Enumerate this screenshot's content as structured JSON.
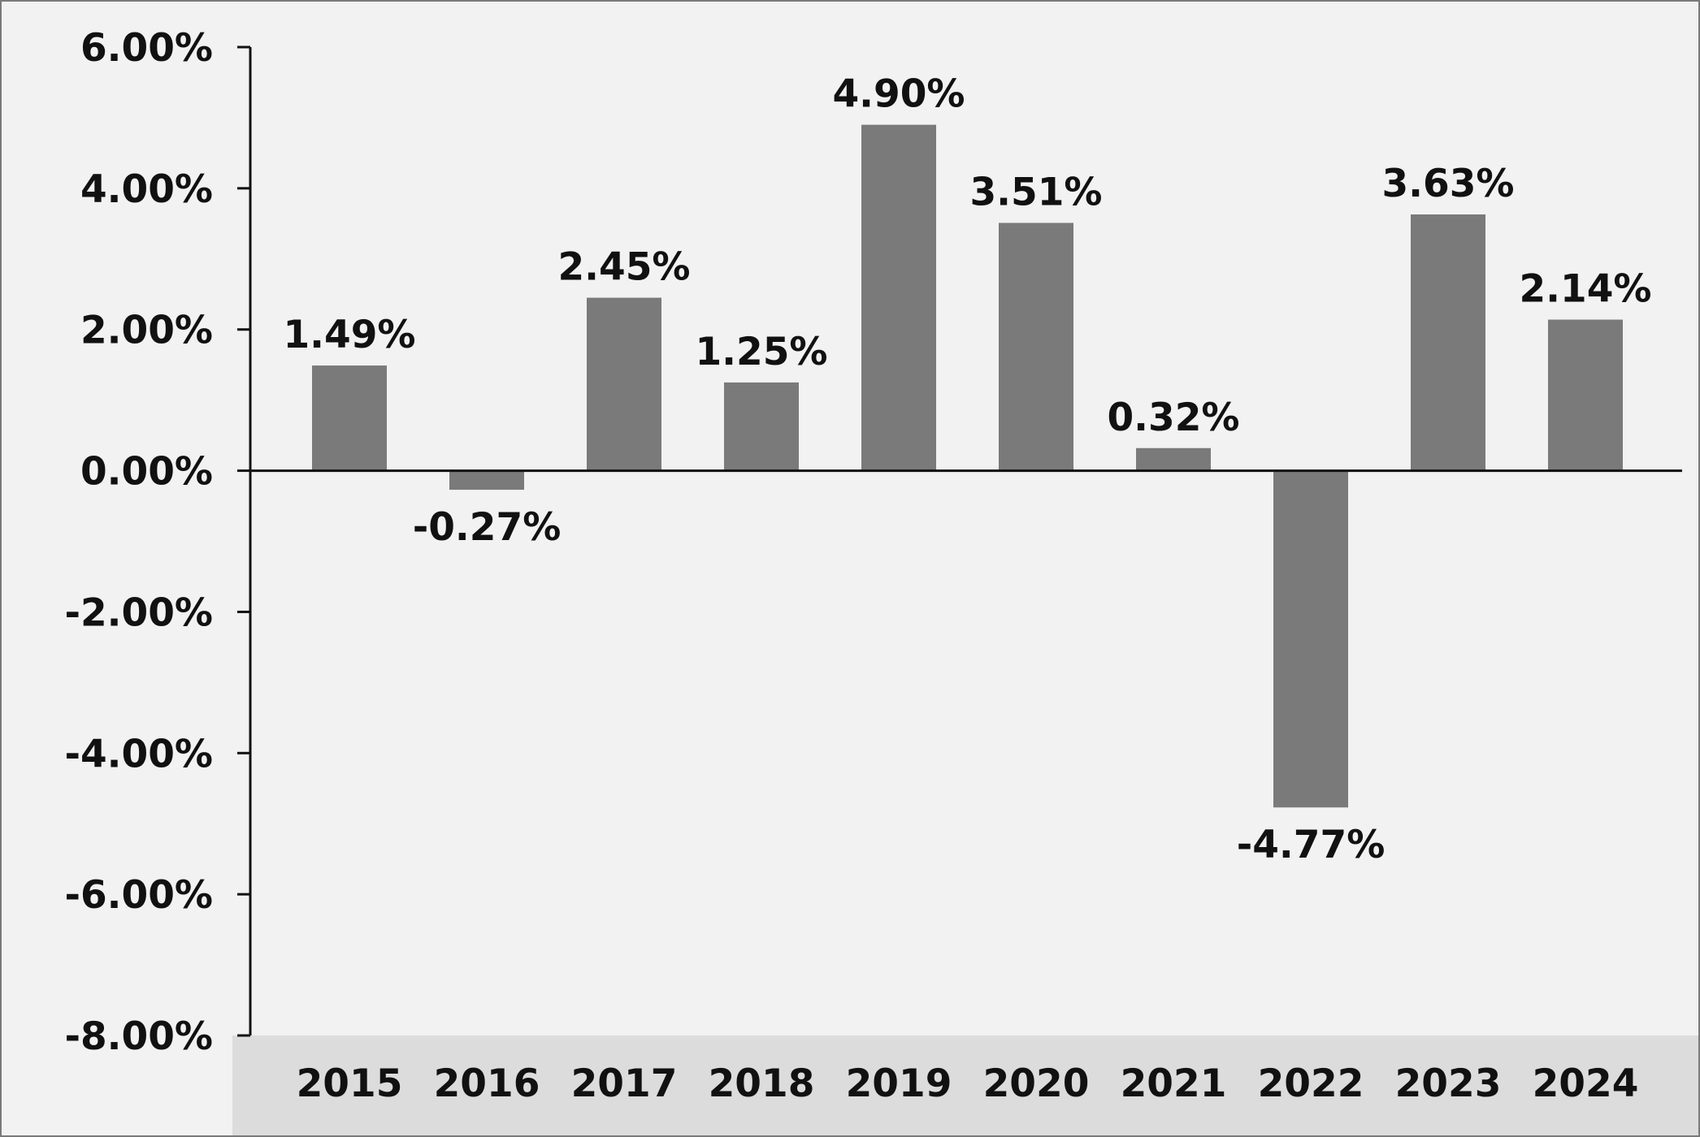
{
  "chart_data": {
    "type": "bar",
    "categories": [
      "2015",
      "2016",
      "2017",
      "2018",
      "2019",
      "2020",
      "2021",
      "2022",
      "2023",
      "2024"
    ],
    "values": [
      1.49,
      -0.27,
      2.45,
      1.25,
      4.9,
      3.51,
      0.32,
      -4.77,
      3.63,
      2.14
    ],
    "data_labels": [
      "1.49%",
      "-0.27%",
      "2.45%",
      "1.25%",
      "4.90%",
      "3.51%",
      "0.32%",
      "-4.77%",
      "3.63%",
      "2.14%"
    ],
    "yticks": [
      6,
      4,
      2,
      0,
      -2,
      -4,
      -6,
      -8
    ],
    "ytick_labels": [
      "6.00%",
      "4.00%",
      "2.00%",
      "0.00%",
      "-2.00%",
      "-4.00%",
      "-6.00%",
      "-8.00%"
    ],
    "ylim": [
      -8,
      6
    ],
    "title": "",
    "xlabel": "",
    "ylabel": "",
    "grid": false,
    "legend": "none"
  },
  "colors": {
    "bar": "#7a7a7a",
    "background": "#f1f2f1",
    "category_band": "#dcdcdc",
    "axis": "#111111",
    "border": "#7a7a7a"
  }
}
